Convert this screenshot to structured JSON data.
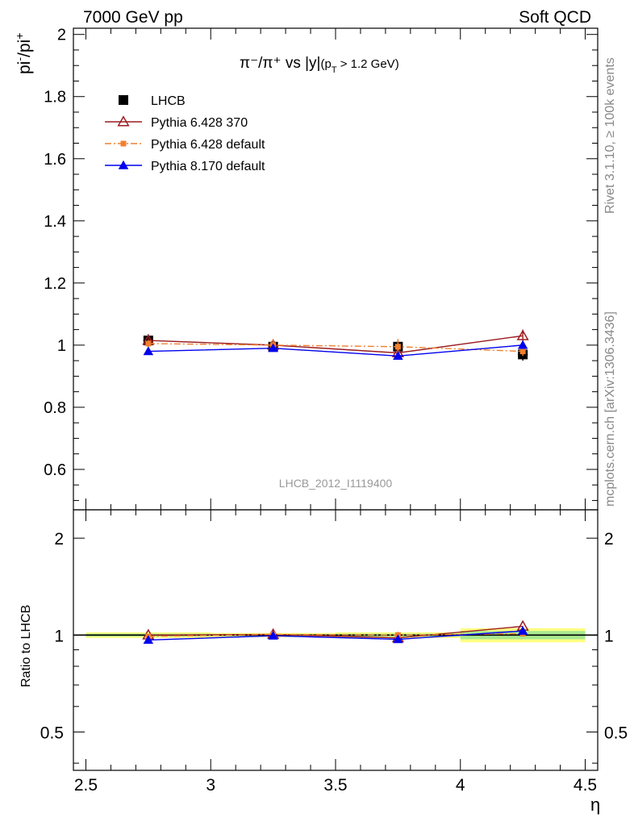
{
  "header": {
    "energy_label": "7000 GeV pp",
    "category_label": "Soft QCD"
  },
  "side_labels": {
    "rivet": "Rivet 3.1.10, ≥ 100k events",
    "source": "mcplots.cern.ch [arXiv:1306.3436]"
  },
  "chart_data": [
    {
      "type": "scatter",
      "title": "π⁻/π⁺ vs |y|(p_T > 1.2 GeV)",
      "title_parts": {
        "main": "π⁻/π⁺ vs |y|",
        "cut_pre": "(p",
        "cut_sub": "T",
        "cut_post": " > 1.2 GeV)"
      },
      "ylabel": "pi⁻/pi⁺",
      "ylabel_parts": {
        "base1": "pi",
        "sup1": "-",
        "base2": "/pi",
        "sup2": "+"
      },
      "xlim": [
        2.45,
        4.55
      ],
      "ylim": [
        0.47,
        2.02
      ],
      "yticks": [
        0.6,
        0.8,
        1,
        1.2,
        1.4,
        1.6,
        1.8,
        2
      ],
      "ytick_labels": [
        "0.6",
        "0.8",
        "1",
        "1.2",
        "1.4",
        "1.6",
        "1.8",
        "2"
      ],
      "watermark": "LHCB_2012_I1119400",
      "legend_position": "top-left",
      "x": [
        2.75,
        3.25,
        3.75,
        4.25
      ],
      "series": [
        {
          "name": "LHCB",
          "values": [
            1.015,
            0.995,
            0.995,
            0.97
          ],
          "errors": [
            0.02,
            0.015,
            0.02,
            0.02
          ],
          "color": "#000000",
          "marker": "square",
          "line": "none"
        },
        {
          "name": "Pythia 6.428 370",
          "values": [
            1.015,
            1.0,
            0.975,
            1.03
          ],
          "errors": [
            0.008,
            0.008,
            0.008,
            0.02
          ],
          "color": "#9b1b1f",
          "marker": "triangle-open",
          "line": "solid"
        },
        {
          "name": "Pythia 6.428 default",
          "values": [
            1.005,
            1.0,
            0.995,
            0.98
          ],
          "errors": [
            0.01,
            0.02,
            0.025,
            0.015
          ],
          "color": "#f08030",
          "marker": "square-small",
          "line": "dashdot"
        },
        {
          "name": "Pythia 8.170 default",
          "values": [
            0.98,
            0.99,
            0.965,
            1.0
          ],
          "errors": [
            0.008,
            0.008,
            0.012,
            0.01
          ],
          "color": "#0000ee",
          "marker": "triangle",
          "line": "solid"
        }
      ]
    },
    {
      "type": "scatter",
      "ylabel": "Ratio to LHCB",
      "xlabel": "η",
      "xlim": [
        2.45,
        4.55
      ],
      "ylim_log": [
        0.38,
        2.45
      ],
      "log_y": true,
      "xticks": [
        2.5,
        3,
        3.5,
        4,
        4.5
      ],
      "xtick_labels": [
        "2.5",
        "3",
        "3.5",
        "4",
        "4.5"
      ],
      "yticks": [
        0.5,
        1,
        2
      ],
      "ytick_labels": [
        "0.5",
        "1",
        "2"
      ],
      "band_edges": [
        2.5,
        3.0,
        3.5,
        4.0,
        4.5
      ],
      "band_rel_err": [
        0.02,
        0.015,
        0.02,
        0.05
      ],
      "band_rel_err_inner": [
        0.01,
        0.008,
        0.01,
        0.03
      ],
      "band_colors": {
        "outer": "#ffff80",
        "inner": "#a8e890"
      },
      "x": [
        2.75,
        3.25,
        3.75,
        4.25
      ],
      "series": [
        {
          "name": "Pythia 6.428 370",
          "values": [
            1.0,
            1.005,
            0.98,
            1.065
          ]
        },
        {
          "name": "Pythia 6.428 default",
          "values": [
            0.99,
            1.005,
            1.0,
            1.01
          ]
        },
        {
          "name": "Pythia 8.170 default",
          "values": [
            0.965,
            0.995,
            0.97,
            1.03
          ]
        }
      ]
    }
  ]
}
